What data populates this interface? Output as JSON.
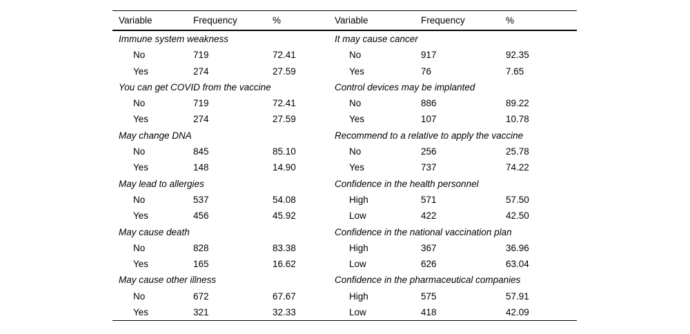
{
  "table": {
    "headers": {
      "left": [
        "Variable",
        "Frequency",
        "%"
      ],
      "right": [
        "Variable",
        "Frequency",
        "%"
      ]
    },
    "left_sections": [
      {
        "title": "Immune system weakness",
        "rows": [
          [
            "No",
            "719",
            "72.41"
          ],
          [
            "Yes",
            "274",
            "27.59"
          ]
        ]
      },
      {
        "title": "You can get COVID from the vaccine",
        "rows": [
          [
            "No",
            "719",
            "72.41"
          ],
          [
            "Yes",
            "274",
            "27.59"
          ]
        ]
      },
      {
        "title": "May change DNA",
        "rows": [
          [
            "No",
            "845",
            "85.10"
          ],
          [
            "Yes",
            "148",
            "14.90"
          ]
        ]
      },
      {
        "title": "May lead to allergies",
        "rows": [
          [
            "No",
            "537",
            "54.08"
          ],
          [
            "Yes",
            "456",
            "45.92"
          ]
        ]
      },
      {
        "title": "May cause death",
        "rows": [
          [
            "No",
            "828",
            "83.38"
          ],
          [
            "Yes",
            "165",
            "16.62"
          ]
        ]
      },
      {
        "title": "May cause other illness",
        "rows": [
          [
            "No",
            "672",
            "67.67"
          ],
          [
            "Yes",
            "321",
            "32.33"
          ]
        ]
      }
    ],
    "right_sections": [
      {
        "title": "It may cause cancer",
        "rows": [
          [
            "No",
            "917",
            "92.35"
          ],
          [
            "Yes",
            "76",
            "7.65"
          ]
        ]
      },
      {
        "title": "Control devices may be implanted",
        "rows": [
          [
            "No",
            "886",
            "89.22"
          ],
          [
            "Yes",
            "107",
            "10.78"
          ]
        ]
      },
      {
        "title": "Recommend to a relative to apply the vaccine",
        "rows": [
          [
            "No",
            "256",
            "25.78"
          ],
          [
            "Yes",
            "737",
            "74.22"
          ]
        ]
      },
      {
        "title": "Confidence in the health personnel",
        "rows": [
          [
            "High",
            "571",
            "57.50"
          ],
          [
            "Low",
            "422",
            "42.50"
          ]
        ]
      },
      {
        "title": "Confidence in the national vaccination plan",
        "rows": [
          [
            "High",
            "367",
            "36.96"
          ],
          [
            "Low",
            "626",
            "63.04"
          ]
        ]
      },
      {
        "title": "Confidence in the pharmaceutical companies",
        "rows": [
          [
            "High",
            "575",
            "57.91"
          ],
          [
            "Low",
            "418",
            "42.09"
          ]
        ]
      }
    ]
  }
}
